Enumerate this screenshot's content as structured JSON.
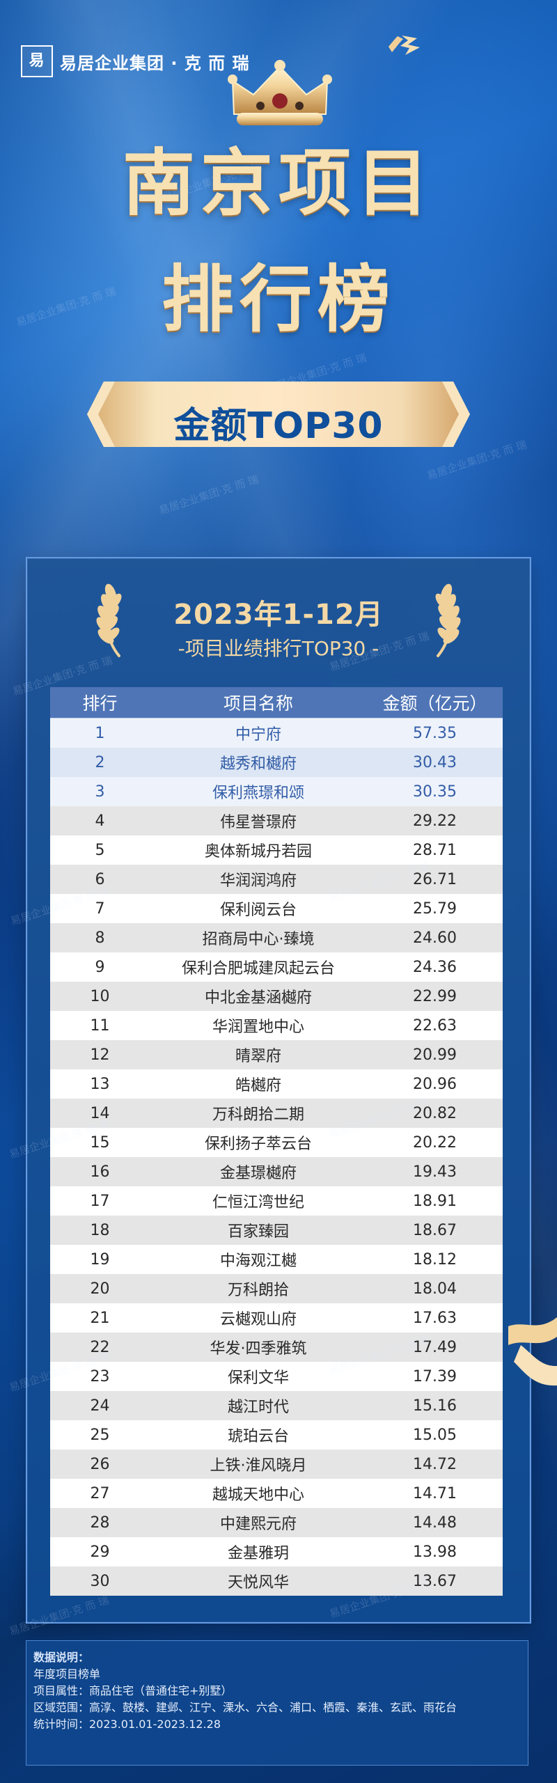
{
  "brand": {
    "mark": "易",
    "name": "易居企业集团 · 克 而 瑞"
  },
  "hero": {
    "title_line_1": "南京项目",
    "title_line_2": "排行榜",
    "ribbon_label": "金额TOP30"
  },
  "period": {
    "title": "2023年1-12月",
    "subtitle": "-项目业绩排行TOP30 -"
  },
  "table": {
    "headers": {
      "rank": "排行",
      "project_name": "项目名称",
      "amount": "金额（亿元）"
    },
    "rows": [
      {
        "rank": "1",
        "project_name": "中宁府",
        "amount": "57.35"
      },
      {
        "rank": "2",
        "project_name": "越秀和樾府",
        "amount": "30.43"
      },
      {
        "rank": "3",
        "project_name": "保利燕璟和颂",
        "amount": "30.35"
      },
      {
        "rank": "4",
        "project_name": "伟星誉璟府",
        "amount": "29.22"
      },
      {
        "rank": "5",
        "project_name": "奥体新城丹若园",
        "amount": "28.71"
      },
      {
        "rank": "6",
        "project_name": "华润润鸿府",
        "amount": "26.71"
      },
      {
        "rank": "7",
        "project_name": "保利阅云台",
        "amount": "25.79"
      },
      {
        "rank": "8",
        "project_name": "招商局中心·臻境",
        "amount": "24.60"
      },
      {
        "rank": "9",
        "project_name": "保利合肥城建凤起云台",
        "amount": "24.36"
      },
      {
        "rank": "10",
        "project_name": "中北金基涵樾府",
        "amount": "22.99"
      },
      {
        "rank": "11",
        "project_name": "华润置地中心",
        "amount": "22.63"
      },
      {
        "rank": "12",
        "project_name": "晴翠府",
        "amount": "20.99"
      },
      {
        "rank": "13",
        "project_name": "皓樾府",
        "amount": "20.96"
      },
      {
        "rank": "14",
        "project_name": "万科朗拾二期",
        "amount": "20.82"
      },
      {
        "rank": "15",
        "project_name": "保利扬子萃云台",
        "amount": "20.22"
      },
      {
        "rank": "16",
        "project_name": "金基璟樾府",
        "amount": "19.43"
      },
      {
        "rank": "17",
        "project_name": "仁恒江湾世纪",
        "amount": "18.91"
      },
      {
        "rank": "18",
        "project_name": "百家臻园",
        "amount": "18.67"
      },
      {
        "rank": "19",
        "project_name": "中海观江樾",
        "amount": "18.12"
      },
      {
        "rank": "20",
        "project_name": "万科朗拾",
        "amount": "18.04"
      },
      {
        "rank": "21",
        "project_name": "云樾观山府",
        "amount": "17.63"
      },
      {
        "rank": "22",
        "project_name": "华发·四季雅筑",
        "amount": "17.49"
      },
      {
        "rank": "23",
        "project_name": "保利文华",
        "amount": "17.39"
      },
      {
        "rank": "24",
        "project_name": "越江时代",
        "amount": "15.16"
      },
      {
        "rank": "25",
        "project_name": "琥珀云台",
        "amount": "15.05"
      },
      {
        "rank": "26",
        "project_name": "上铁·淮风晓月",
        "amount": "14.72"
      },
      {
        "rank": "27",
        "project_name": "越城天地中心",
        "amount": "14.71"
      },
      {
        "rank": "28",
        "project_name": "中建熙元府",
        "amount": "14.48"
      },
      {
        "rank": "29",
        "project_name": "金基雅玥",
        "amount": "13.98"
      },
      {
        "rank": "30",
        "project_name": "天悦风华",
        "amount": "13.67"
      }
    ]
  },
  "notes": {
    "title": "数据说明：",
    "line_1": "年度项目榜单",
    "line_2": "项目属性：商品住宅（普通住宅+别墅）",
    "line_3": "区域范围：高淳、鼓楼、建邺、江宁、溧水、六合、浦口、栖霞、秦淮、玄武、雨花台",
    "line_4": "统计时间：2023.01.01-2023.12.28"
  },
  "watermark": {
    "text": "易居企业集团·克 而 瑞"
  },
  "icons": {
    "brand": "brand-mark-icon",
    "crown": "crown-icon",
    "laurel_left": "laurel-left-icon",
    "laurel_right": "laurel-right-icon",
    "ribbon_top": "ribbon-icon",
    "ribbon_right": "ribbon-icon"
  },
  "colors": {
    "background": "#0b3f86",
    "gold": "#f4d8a5",
    "table_header": "#4f75b6",
    "top_rank_text": "#325ca7"
  }
}
